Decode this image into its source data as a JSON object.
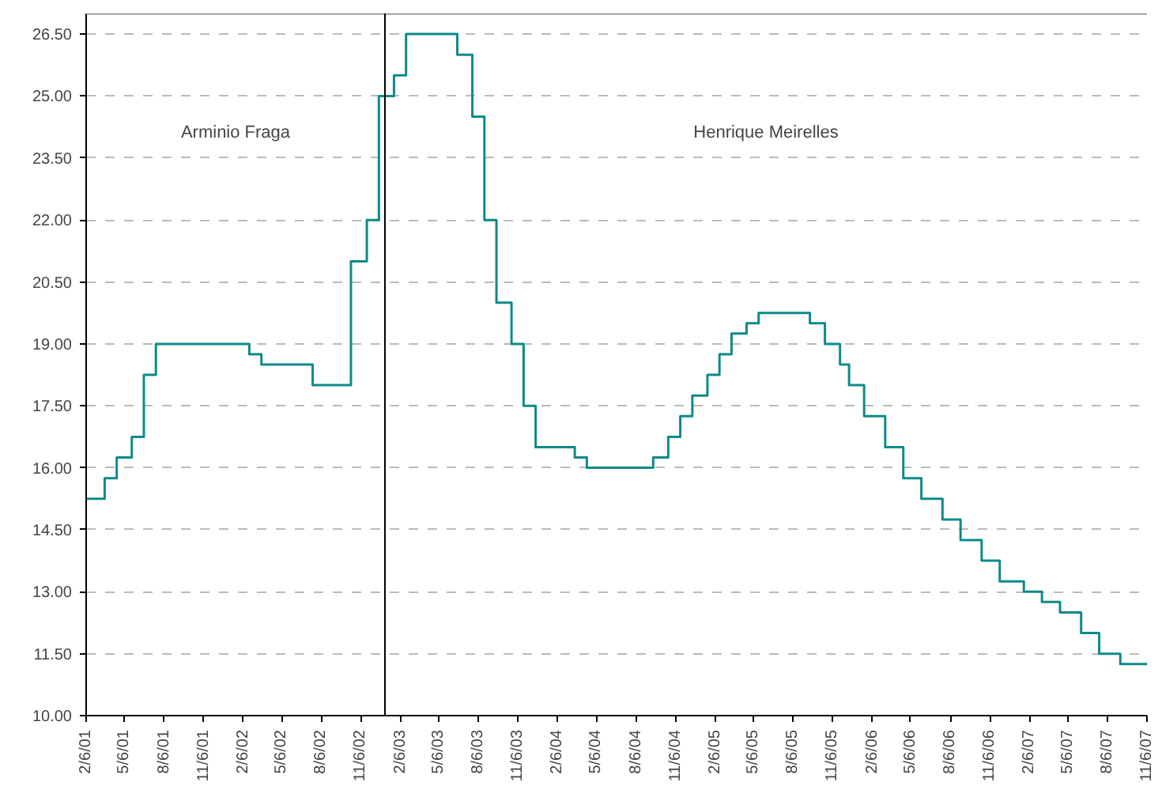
{
  "chart_data": {
    "type": "step",
    "x": [
      "2001-02-06",
      "2001-03-21",
      "2001-04-18",
      "2001-05-23",
      "2001-06-20",
      "2001-07-18",
      "2002-02-20",
      "2002-03-20",
      "2002-07-17",
      "2002-10-14",
      "2002-11-20",
      "2002-12-18",
      "2003-01-22",
      "2003-02-19",
      "2003-06-18",
      "2003-07-23",
      "2003-08-20",
      "2003-09-17",
      "2003-10-22",
      "2003-11-19",
      "2003-12-17",
      "2004-03-17",
      "2004-04-14",
      "2004-09-15",
      "2004-10-20",
      "2004-11-17",
      "2004-12-15",
      "2005-01-19",
      "2005-02-16",
      "2005-03-16",
      "2005-04-20",
      "2005-05-18",
      "2005-09-14",
      "2005-10-19",
      "2005-11-23",
      "2005-12-14",
      "2006-01-18",
      "2006-03-08",
      "2006-04-19",
      "2006-05-31",
      "2006-07-19",
      "2006-08-30",
      "2006-10-18",
      "2006-11-29",
      "2007-01-24",
      "2007-03-07",
      "2007-04-18",
      "2007-06-06",
      "2007-07-18",
      "2007-09-05",
      "2007-11-06"
    ],
    "series": [
      {
        "color": "#0f8a8a",
        "values": [
          15.25,
          15.75,
          16.25,
          16.75,
          18.25,
          19.0,
          18.75,
          18.5,
          18.0,
          21.0,
          22.0,
          25.0,
          25.5,
          26.5,
          26.0,
          24.5,
          22.0,
          20.0,
          19.0,
          17.5,
          16.5,
          16.25,
          16.0,
          16.25,
          16.75,
          17.25,
          17.75,
          18.25,
          18.75,
          19.25,
          19.5,
          19.75,
          19.5,
          19.0,
          18.5,
          18.0,
          17.25,
          16.5,
          15.75,
          15.25,
          14.75,
          14.25,
          13.75,
          13.25,
          13.0,
          12.75,
          12.5,
          12.0,
          11.5,
          11.25,
          11.25
        ]
      }
    ],
    "xlim": [
      "2001-02-06",
      "2007-11-06"
    ],
    "xticks": [
      {
        "value": "2001-02-06",
        "label": "2/6/01"
      },
      {
        "value": "2001-05-06",
        "label": "5/6/01"
      },
      {
        "value": "2001-08-06",
        "label": "8/6/01"
      },
      {
        "value": "2001-11-06",
        "label": "11/6/01"
      },
      {
        "value": "2002-02-06",
        "label": "2/6/02"
      },
      {
        "value": "2002-05-06",
        "label": "5/6/02"
      },
      {
        "value": "2002-08-06",
        "label": "8/6/02"
      },
      {
        "value": "2002-11-06",
        "label": "11/6/02"
      },
      {
        "value": "2003-02-06",
        "label": "2/6/03"
      },
      {
        "value": "2003-05-06",
        "label": "5/6/03"
      },
      {
        "value": "2003-08-06",
        "label": "8/6/03"
      },
      {
        "value": "2003-11-06",
        "label": "11/6/03"
      },
      {
        "value": "2004-02-06",
        "label": "2/6/04"
      },
      {
        "value": "2004-05-06",
        "label": "5/6/04"
      },
      {
        "value": "2004-08-06",
        "label": "8/6/04"
      },
      {
        "value": "2004-11-06",
        "label": "11/6/04"
      },
      {
        "value": "2005-02-06",
        "label": "2/6/05"
      },
      {
        "value": "2005-05-06",
        "label": "5/6/05"
      },
      {
        "value": "2005-08-06",
        "label": "8/6/05"
      },
      {
        "value": "2005-11-06",
        "label": "11/6/05"
      },
      {
        "value": "2006-02-06",
        "label": "2/6/06"
      },
      {
        "value": "2006-05-06",
        "label": "5/6/06"
      },
      {
        "value": "2006-08-06",
        "label": "8/6/06"
      },
      {
        "value": "2006-11-06",
        "label": "11/6/06"
      },
      {
        "value": "2007-02-06",
        "label": "2/6/07"
      },
      {
        "value": "2007-05-06",
        "label": "5/6/07"
      },
      {
        "value": "2007-08-06",
        "label": "8/6/07"
      },
      {
        "value": "2007-11-06",
        "label": "11/6/07"
      }
    ],
    "ylim": [
      10,
      27
    ],
    "yticks": [
      {
        "value": 10,
        "label": "10.00"
      },
      {
        "value": 11.5,
        "label": "11.50"
      },
      {
        "value": 13,
        "label": "13.00"
      },
      {
        "value": 14.5,
        "label": "14.50"
      },
      {
        "value": 16,
        "label": "16.00"
      },
      {
        "value": 17.5,
        "label": "17.50"
      },
      {
        "value": 19,
        "label": "19.00"
      },
      {
        "value": 20.5,
        "label": "20.50"
      },
      {
        "value": 22,
        "label": "22.00"
      },
      {
        "value": 23.5,
        "label": "23.50"
      },
      {
        "value": 25,
        "label": "25.00"
      },
      {
        "value": 26.5,
        "label": "26.50"
      }
    ],
    "grid": "y",
    "ref_lines": [
      {
        "axis": "x",
        "value": "2003-01-01",
        "color": "#000000"
      }
    ],
    "annotations": [
      "Arminio Fraga",
      "Henrique Meirelles"
    ]
  }
}
